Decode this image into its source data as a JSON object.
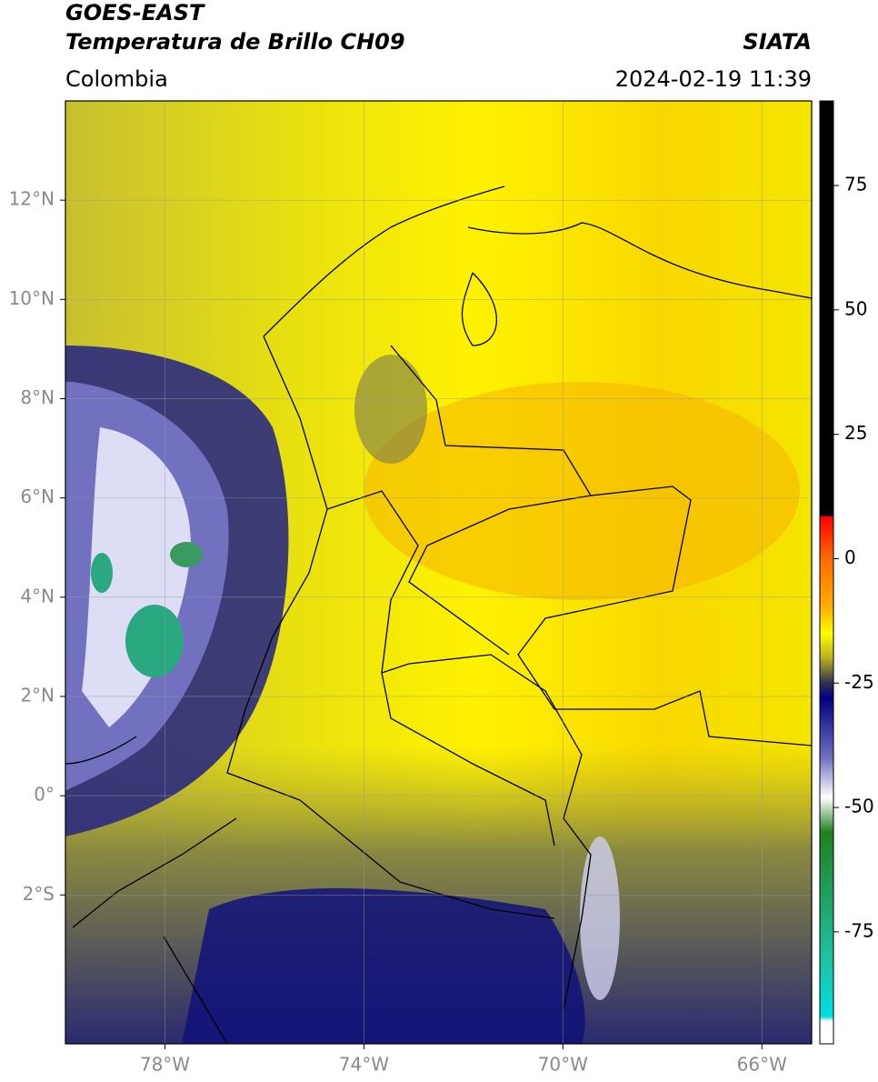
{
  "header": {
    "title_line1": "GOES-EAST",
    "title_line2": "Temperatura de Brillo CH09",
    "source": "SIATA",
    "region": "Colombia",
    "timestamp": "2024-02-19 11:39"
  },
  "map": {
    "lonlim": [
      -80,
      -65
    ],
    "latlim": [
      -5,
      14
    ],
    "lon_ticks": [
      {
        "value": -78,
        "label": "78°W"
      },
      {
        "value": -74,
        "label": "74°W"
      },
      {
        "value": -70,
        "label": "70°W"
      },
      {
        "value": -66,
        "label": "66°W"
      }
    ],
    "lat_ticks": [
      {
        "value": 12,
        "label": "12°N"
      },
      {
        "value": 10,
        "label": "10°N"
      },
      {
        "value": 8,
        "label": "8°N"
      },
      {
        "value": 6,
        "label": "6°N"
      },
      {
        "value": 4,
        "label": "4°N"
      },
      {
        "value": 2,
        "label": "2°N"
      },
      {
        "value": 0,
        "label": "0°"
      },
      {
        "value": -2,
        "label": "2°S"
      }
    ],
    "grid": true
  },
  "colorbar": {
    "clim": [
      -97.5,
      92
    ],
    "ticks": [
      75,
      50,
      25,
      0,
      -25,
      -50,
      -75
    ],
    "colormap": [
      {
        "value": 92,
        "color": "#000000"
      },
      {
        "value": 8.6,
        "color": "#000000"
      },
      {
        "value": 8.5,
        "color": "#ff0000"
      },
      {
        "value": 0,
        "color": "#ff6a00"
      },
      {
        "value": -10,
        "color": "#ffb000"
      },
      {
        "value": -15,
        "color": "#ffff00"
      },
      {
        "value": -20,
        "color": "#b8b020"
      },
      {
        "value": -25,
        "color": "#303050"
      },
      {
        "value": -28,
        "color": "#000080"
      },
      {
        "value": -40,
        "color": "#7070c0"
      },
      {
        "value": -48,
        "color": "#ffffff"
      },
      {
        "value": -55,
        "color": "#208020"
      },
      {
        "value": -80,
        "color": "#20c0a0"
      },
      {
        "value": -92,
        "color": "#00e0e0"
      },
      {
        "value": -93,
        "color": "#ffffff"
      },
      {
        "value": -97.5,
        "color": "#ffffff"
      }
    ]
  }
}
